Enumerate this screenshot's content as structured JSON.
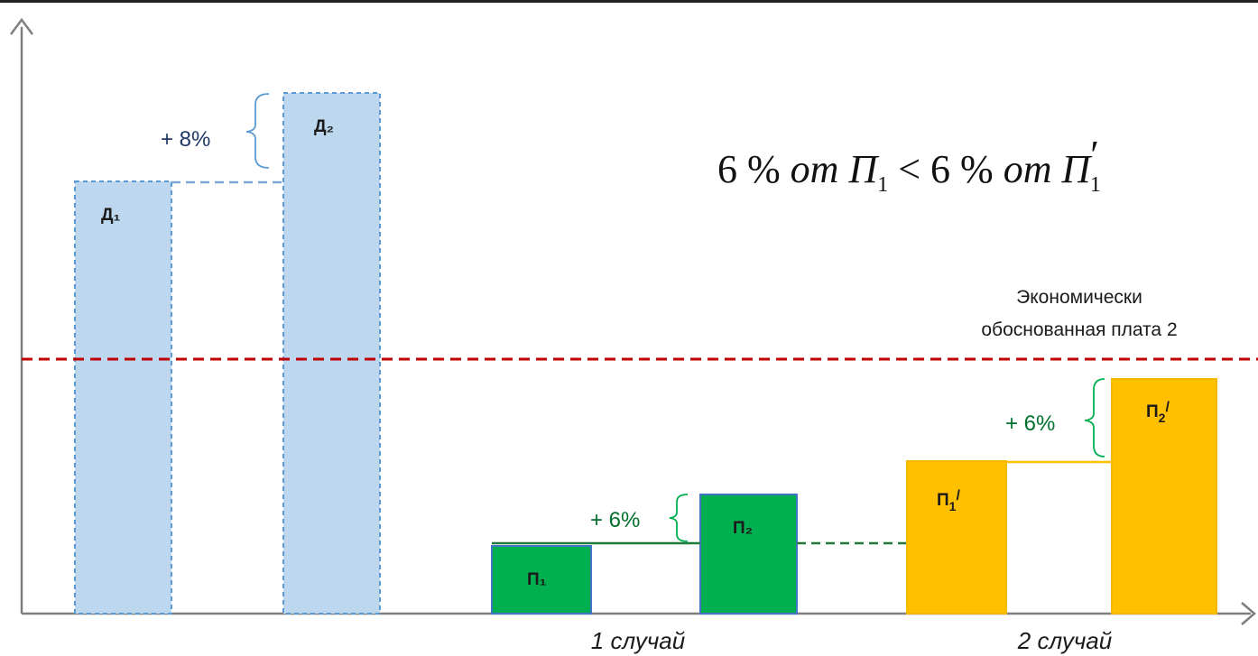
{
  "bars": {
    "d1": {
      "label": "Д₁"
    },
    "d2": {
      "label": "Д₂"
    },
    "p1": {
      "label": "П₁"
    },
    "p2": {
      "label": "П₂"
    },
    "p1_prime": {
      "label_main": "П",
      "label_sub": "1",
      "label_prime": "/"
    },
    "p2_prime": {
      "label_main": "П",
      "label_sub": "2",
      "label_prime": "/"
    }
  },
  "increments": {
    "d": "+ 8%",
    "p": "+ 6%",
    "p_prime": "+ 6%"
  },
  "threshold": {
    "line1": "Экономически",
    "line2": "обоснованная плата 2"
  },
  "cases": {
    "case1": "1 случай",
    "case2": "2 случай"
  },
  "formula": {
    "num_left": "6 % ",
    "word_left": "от ",
    "symbol_left": "П",
    "sub_left": "1",
    "comparator": " < ",
    "num_right": "6 % ",
    "word_right": "от ",
    "symbol_right": "П",
    "sub_right": "1",
    "prime_right": "′"
  },
  "colors": {
    "d_fill": "#bdd7ee",
    "d_stroke": "#5b9bd5",
    "p_fill": "#00b050",
    "p_stroke": "#4472c4",
    "p_prime_fill": "#ffc000",
    "p_prime_stroke": "#f5b800",
    "threshold": "#c00000",
    "axis": "#7f7f7f",
    "pct_blue": "#1f3864",
    "pct_green": "#00702c",
    "connector_green": "#217a3c",
    "connector_yellow": "#ffc000"
  }
}
